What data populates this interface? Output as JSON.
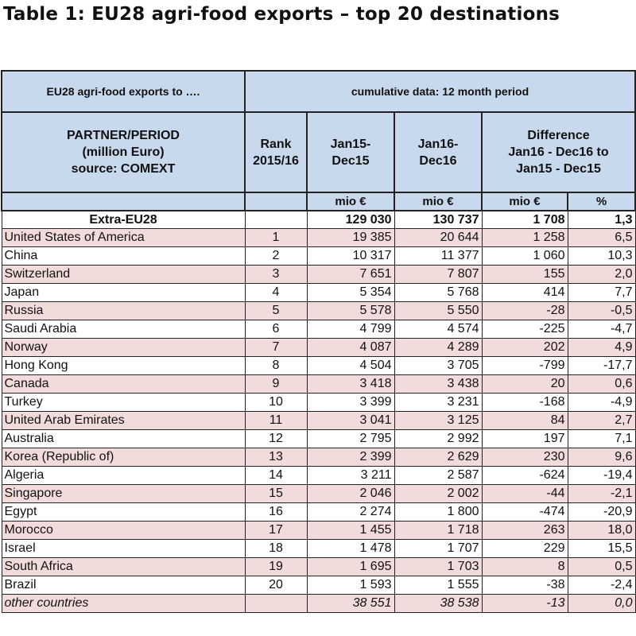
{
  "title": "Table 1: EU28 agri-food exports – top 20 destinations",
  "header": {
    "exports_to": "EU28 agri-food exports to ….",
    "cumulative": "cumulative data: 12 month period",
    "partner_line1": "PARTNER/PERIOD",
    "partner_line2": "(million Euro)",
    "partner_line3": "source: COMEXT",
    "rank_line1": "Rank",
    "rank_line2": "2015/16",
    "p1_line1": "Jan15-",
    "p1_line2": "Dec15",
    "p2_line1": "Jan16-",
    "p2_line2": "Dec16",
    "diff_line1": "Difference",
    "diff_line2": "Jan16 - Dec16 to",
    "diff_line3": "Jan15 - Dec15"
  },
  "units": {
    "mio1": "mio €",
    "mio2": "mio €",
    "mio3": "mio €",
    "pct": "%"
  },
  "total": {
    "name": "Extra-EU28",
    "v15": "129 030",
    "v16": "130 737",
    "diff": "1 708",
    "pct": "1,3"
  },
  "rows": [
    {
      "name": "United States of America",
      "rank": "1",
      "v15": "19 385",
      "v16": "20 644",
      "diff": "1 258",
      "pct": "6,5"
    },
    {
      "name": "China",
      "rank": "2",
      "v15": "10 317",
      "v16": "11 377",
      "diff": "1 060",
      "pct": "10,3"
    },
    {
      "name": "Switzerland",
      "rank": "3",
      "v15": "7 651",
      "v16": "7 807",
      "diff": "155",
      "pct": "2,0"
    },
    {
      "name": "Japan",
      "rank": "4",
      "v15": "5 354",
      "v16": "5 768",
      "diff": "414",
      "pct": "7,7"
    },
    {
      "name": "Russia",
      "rank": "5",
      "v15": "5 578",
      "v16": "5 550",
      "diff": "-28",
      "pct": "-0,5"
    },
    {
      "name": "Saudi Arabia",
      "rank": "6",
      "v15": "4 799",
      "v16": "4 574",
      "diff": "-225",
      "pct": "-4,7"
    },
    {
      "name": "Norway",
      "rank": "7",
      "v15": "4 087",
      "v16": "4 289",
      "diff": "202",
      "pct": "4,9"
    },
    {
      "name": "Hong Kong",
      "rank": "8",
      "v15": "4 504",
      "v16": "3 705",
      "diff": "-799",
      "pct": "-17,7"
    },
    {
      "name": "Canada",
      "rank": "9",
      "v15": "3 418",
      "v16": "3 438",
      "diff": "20",
      "pct": "0,6"
    },
    {
      "name": "Turkey",
      "rank": "10",
      "v15": "3 399",
      "v16": "3 231",
      "diff": "-168",
      "pct": "-4,9"
    },
    {
      "name": "United Arab Emirates",
      "rank": "11",
      "v15": "3 041",
      "v16": "3 125",
      "diff": "84",
      "pct": "2,7"
    },
    {
      "name": "Australia",
      "rank": "12",
      "v15": "2 795",
      "v16": "2 992",
      "diff": "197",
      "pct": "7,1"
    },
    {
      "name": "Korea (Republic of)",
      "rank": "13",
      "v15": "2 399",
      "v16": "2 629",
      "diff": "230",
      "pct": "9,6"
    },
    {
      "name": "Algeria",
      "rank": "14",
      "v15": "3 211",
      "v16": "2 587",
      "diff": "-624",
      "pct": "-19,4"
    },
    {
      "name": "Singapore",
      "rank": "15",
      "v15": "2 046",
      "v16": "2 002",
      "diff": "-44",
      "pct": "-2,1"
    },
    {
      "name": "Egypt",
      "rank": "16",
      "v15": "2 274",
      "v16": "1 800",
      "diff": "-474",
      "pct": "-20,9"
    },
    {
      "name": "Morocco",
      "rank": "17",
      "v15": "1 455",
      "v16": "1 718",
      "diff": "263",
      "pct": "18,0"
    },
    {
      "name": "Israel",
      "rank": "18",
      "v15": "1 478",
      "v16": "1 707",
      "diff": "229",
      "pct": "15,5"
    },
    {
      "name": "South Africa",
      "rank": "19",
      "v15": "1 695",
      "v16": "1 703",
      "diff": "8",
      "pct": "0,5"
    },
    {
      "name": "Brazil",
      "rank": "20",
      "v15": "1 593",
      "v16": "1 555",
      "diff": "-38",
      "pct": "-2,4"
    }
  ],
  "other": {
    "name": "other countries",
    "v15": "38 551",
    "v16": "38 538",
    "diff": "-13",
    "pct": "0,0"
  }
}
